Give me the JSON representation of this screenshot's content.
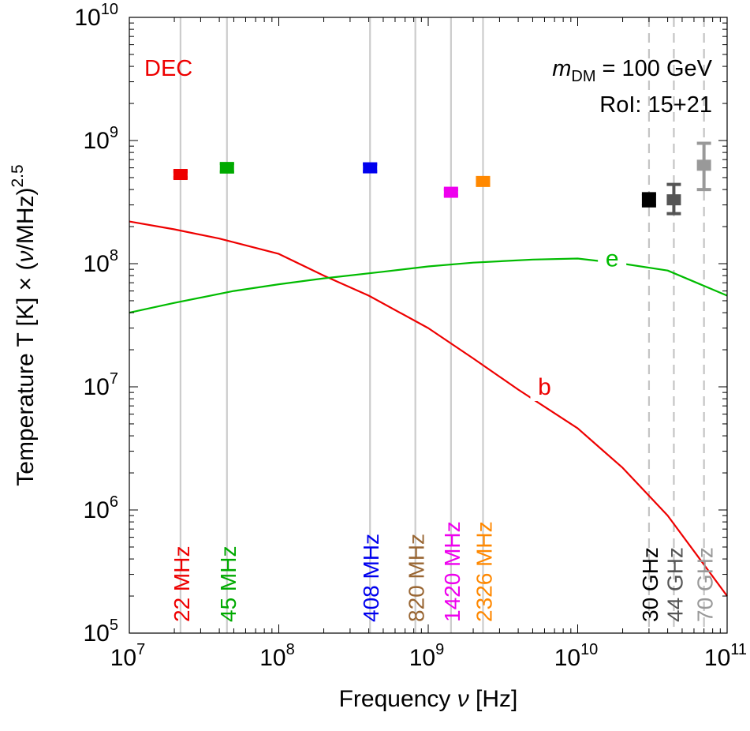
{
  "chart_data": {
    "type": "line",
    "x_scale": "log",
    "y_scale": "log",
    "xlim": [
      10000000,
      100000000000
    ],
    "ylim": [
      100000,
      10000000000
    ],
    "xlabel": "Frequency",
    "xlabel_symbol": "ν",
    "xlabel_unit": "[Hz]",
    "ylabel_main": "Temperature T [K] × (",
    "ylabel_symbol": "ν",
    "ylabel_rest": "/MHz)",
    "ylabel_exp": "2.5",
    "x_ticks": [
      {
        "base": "10",
        "exp": "7",
        "value": 10000000
      },
      {
        "base": "10",
        "exp": "8",
        "value": 100000000
      },
      {
        "base": "10",
        "exp": "9",
        "value": 1000000000
      },
      {
        "base": "10",
        "exp": "10",
        "value": 10000000000
      },
      {
        "base": "10",
        "exp": "11",
        "value": 100000000000
      }
    ],
    "y_ticks": [
      {
        "base": "10",
        "exp": "5",
        "value": 100000
      },
      {
        "base": "10",
        "exp": "6",
        "value": 1000000
      },
      {
        "base": "10",
        "exp": "7",
        "value": 10000000
      },
      {
        "base": "10",
        "exp": "8",
        "value": 100000000
      },
      {
        "base": "10",
        "exp": "9",
        "value": 1000000000
      },
      {
        "base": "10",
        "exp": "10",
        "value": 10000000000
      }
    ],
    "annotations": {
      "corner_left": "DEC",
      "corner_left_color": "#ee0000",
      "mass_symbol": "m",
      "mass_sub": "DM",
      "mass_value": "= 100 GeV",
      "roi": "RoI: 15+21"
    },
    "frequency_markers": [
      {
        "freq": 22000000,
        "label": "22 MHz",
        "color": "#ee0000",
        "line": "solid"
      },
      {
        "freq": 45000000,
        "label": "45 MHz",
        "color": "#00aa00",
        "line": "solid"
      },
      {
        "freq": 408000000,
        "label": "408 MHz",
        "color": "#0000ee",
        "line": "solid"
      },
      {
        "freq": 820000000,
        "label": "820 MHz",
        "color": "#996633",
        "line": "solid"
      },
      {
        "freq": 1420000000,
        "label": "1420 MHz",
        "color": "#ee00ee",
        "line": "solid"
      },
      {
        "freq": 2326000000,
        "label": "2326 MHz",
        "color": "#ff8800",
        "line": "solid"
      },
      {
        "freq": 30000000000,
        "label": "30 GHz",
        "color": "#000000",
        "line": "dashed"
      },
      {
        "freq": 44000000000,
        "label": "44 GHz",
        "color": "#555555",
        "line": "dashed"
      },
      {
        "freq": 70000000000,
        "label": "70 GHz",
        "color": "#999999",
        "line": "dashed"
      }
    ],
    "data_points": [
      {
        "x": 22000000,
        "y": 530000000,
        "ylo": 500000000,
        "yhi": 560000000,
        "color": "#ee0000"
      },
      {
        "x": 45000000,
        "y": 600000000,
        "ylo": 555000000,
        "yhi": 650000000,
        "color": "#00aa00"
      },
      {
        "x": 408000000,
        "y": 600000000,
        "ylo": 560000000,
        "yhi": 645000000,
        "color": "#0000ee"
      },
      {
        "x": 1420000000,
        "y": 380000000,
        "ylo": 360000000,
        "yhi": 400000000,
        "color": "#ee00ee"
      },
      {
        "x": 2326000000,
        "y": 465000000,
        "ylo": 440000000,
        "yhi": 490000000,
        "color": "#ff8800"
      },
      {
        "x": 30000000000,
        "y": 330000000,
        "ylo": 295000000,
        "yhi": 370000000,
        "color": "#000000"
      },
      {
        "x": 44000000000,
        "y": 330000000,
        "ylo": 255000000,
        "yhi": 440000000,
        "color": "#555555"
      },
      {
        "x": 70000000000,
        "y": 630000000,
        "ylo": 400000000,
        "yhi": 950000000,
        "color": "#999999"
      }
    ],
    "series": [
      {
        "name": "b",
        "color": "#ee0000",
        "label_x": 6000000000,
        "label_y": 10000000,
        "x": [
          10000000,
          20000000,
          40000000,
          100000000,
          200000000,
          400000000,
          1000000000,
          2000000000,
          4000000000,
          10000000000,
          20000000000,
          40000000000,
          100000000000
        ],
        "y": [
          220000000,
          190000000,
          160000000,
          120000000,
          80000000,
          55000000,
          30000000,
          17000000,
          9500000,
          4600000,
          2200000,
          900000,
          200000
        ]
      },
      {
        "name": "e",
        "color": "#00bb00",
        "label_x": 17000000000,
        "label_y": 110000000,
        "x": [
          10000000,
          20000000,
          50000000,
          100000000,
          200000000,
          500000000,
          1000000000,
          2000000000,
          5000000000,
          10000000000,
          20000000000,
          40000000000,
          100000000000
        ],
        "y": [
          40000000,
          48000000,
          60000000,
          68000000,
          76000000,
          86000000,
          95000000,
          102000000,
          108000000,
          110000000,
          100000000,
          88000000,
          55000000
        ]
      }
    ]
  }
}
